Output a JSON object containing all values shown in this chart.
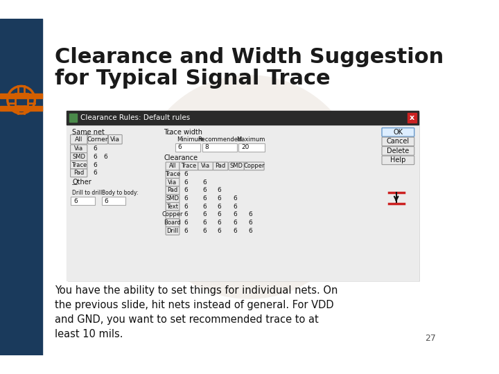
{
  "bg_color": "#ffffff",
  "left_bar_color": "#1a3a5c",
  "accent_color": "#d45f00",
  "title_line1": "Clearance and Width Suggestion",
  "title_line2": "for Typical Signal Trace",
  "title_color": "#1a1a1a",
  "body_text": "You have the ability to set things for individual nets. On\nthe previous slide, hit nets instead of general. For VDD\nand GND, you want to set recommended trace to at\nleast 10 mils.",
  "page_number": "27",
  "slide_bg": "#f0f0f0",
  "dialog_title": "Clearance Rules: Default rules",
  "dialog_bg": "#f0f0f0",
  "dialog_header_bg": "#2a2a2a",
  "dialog_header_text": "#ffffff"
}
